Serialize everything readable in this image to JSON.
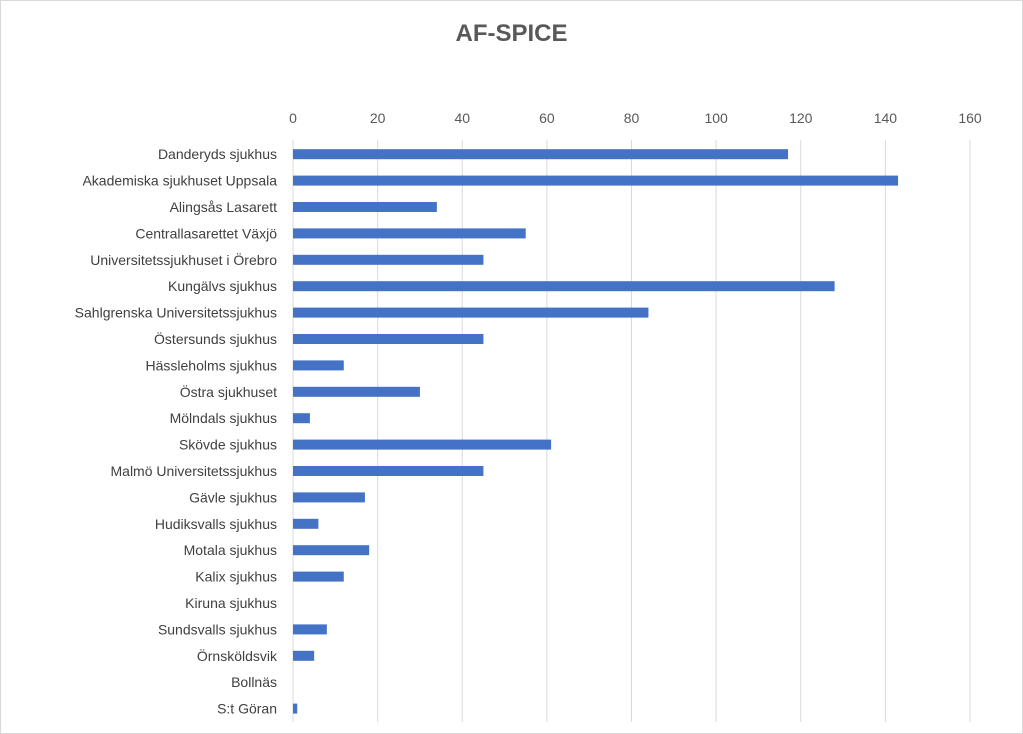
{
  "chart_data": {
    "type": "bar",
    "orientation": "horizontal",
    "title": "AF-SPICE",
    "xlabel": "",
    "ylabel": "",
    "xlim": [
      0,
      160
    ],
    "x_ticks": [
      0,
      20,
      40,
      60,
      80,
      100,
      120,
      140,
      160
    ],
    "x_axis_position": "top",
    "grid": true,
    "legend": "none",
    "bar_color": "#4472C4",
    "categories": [
      "Danderyds sjukhus",
      "Akademiska sjukhuset Uppsala",
      "Alingsås Lasarett",
      "Centrallasarettet Växjö",
      "Universitetssjukhuset i Örebro",
      "Kungälvs sjukhus",
      "Sahlgrenska Universitetssjukhus",
      "Östersunds sjukhus",
      "Hässleholms sjukhus",
      "Östra sjukhuset",
      "Mölndals sjukhus",
      "Skövde sjukhus",
      "Malmö Universitetssjukhus",
      "Gävle sjukhus",
      "Hudiksvalls sjukhus",
      "Motala sjukhus",
      "Kalix sjukhus",
      "Kiruna sjukhus",
      "Sundsvalls sjukhus",
      "Örnsköldsvik",
      "Bollnäs",
      "S:t Göran"
    ],
    "values": [
      117,
      143,
      34,
      55,
      45,
      128,
      84,
      45,
      12,
      30,
      4,
      61,
      45,
      17,
      6,
      18,
      12,
      0,
      8,
      5,
      0,
      1
    ]
  }
}
